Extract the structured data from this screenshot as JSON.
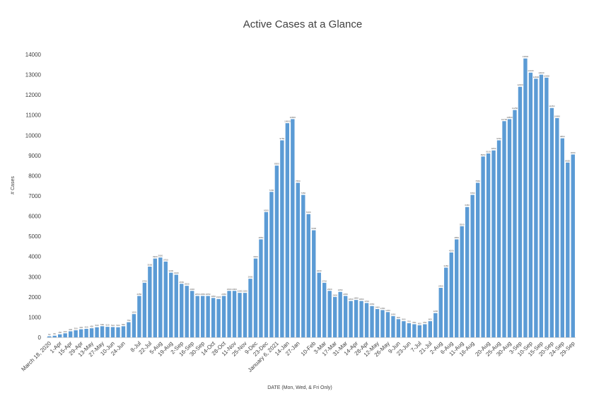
{
  "chart_data": {
    "type": "bar",
    "title": "Active Cases at a Glance",
    "xlabel": "DATE  (Mon, Wed, & Fri Only)",
    "ylabel": "# Cases",
    "ylim": [
      0,
      14000
    ],
    "yticks": [
      0,
      1000,
      2000,
      3000,
      4000,
      5000,
      6000,
      7000,
      8000,
      9000,
      10000,
      11000,
      12000,
      13000,
      14000
    ],
    "grid": false,
    "legend": "none",
    "bar_color": "#5B9BD5",
    "tick_labels": [
      "March 18, 2020",
      "1-Apr",
      "15-Apr",
      "29-Apr",
      "13-May",
      "27-May",
      "10-Jun",
      "24-Jun",
      "8-Jul",
      "22-Jul",
      "5-Aug",
      "19-Aug",
      "2-Sep",
      "16-Sep",
      "30-Sep",
      "14-Oct",
      "28-Oct",
      "11-Nov",
      "25-Nov",
      "9-Dec",
      "23-Dec",
      "January 6, 2021",
      "14-Jan",
      "27-Jan",
      "10-Feb",
      "3-Mar",
      "17-Mar",
      "31-Mar",
      "14-Apr",
      "28-Apr",
      "12-May",
      "26-May",
      "9-Jun",
      "23-Jun",
      "7-Jul",
      "21-Jul",
      "2-Aug",
      "6-Aug",
      "11-Aug",
      "16-Aug",
      "20-Aug",
      "25-Aug",
      "30-Aug",
      "3-Sep",
      "10-Sep",
      "15-Sep",
      "20-Sep",
      "24-Sep",
      "29-Sep"
    ],
    "values": [
      50,
      80,
      150,
      200,
      300,
      350,
      400,
      420,
      450,
      500,
      550,
      520,
      510,
      500,
      550,
      750,
      1150,
      2050,
      2700,
      3500,
      3900,
      3950,
      3750,
      3200,
      3100,
      2650,
      2550,
      2300,
      2050,
      2050,
      2050,
      1950,
      1900,
      2050,
      2300,
      2300,
      2200,
      2200,
      2900,
      3900,
      4850,
      6200,
      7200,
      8500,
      9750,
      10600,
      10800,
      7650,
      7050,
      6100,
      5300,
      3200,
      2700,
      2300,
      2000,
      2250,
      2050,
      1800,
      1850,
      1800,
      1700,
      1550,
      1400,
      1350,
      1250,
      1050,
      900,
      800,
      700,
      650,
      600,
      650,
      800,
      1200,
      2450,
      3450,
      4200,
      4850,
      5500,
      6450,
      7050,
      7650,
      8950,
      9100,
      9250,
      9750,
      10700,
      10800,
      11250,
      12400,
      13800,
      13100,
      12800,
      13000,
      12850,
      11350,
      10850,
      9850,
      8650,
      9050
    ]
  }
}
